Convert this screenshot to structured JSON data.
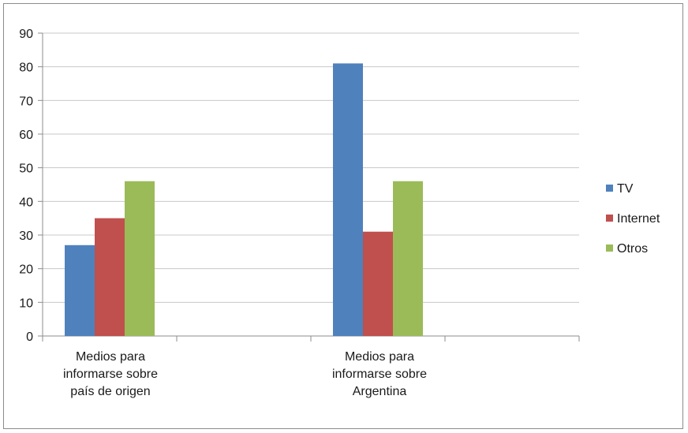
{
  "chart_data": {
    "type": "bar",
    "title": "",
    "xlabel": "",
    "ylabel": "",
    "ylim": [
      0,
      90
    ],
    "yticks": [
      0,
      10,
      20,
      30,
      40,
      50,
      60,
      70,
      80,
      90
    ],
    "grid": true,
    "legend_position": "right",
    "categories": [
      [
        "Medios para",
        "informarse sobre",
        "país de origen"
      ],
      [
        "Medios para",
        "informarse sobre",
        "Argentina"
      ]
    ],
    "series": [
      {
        "name": "TV",
        "color": "#4f81bd",
        "values": [
          27,
          81
        ]
      },
      {
        "name": "Internet",
        "color": "#c0504d",
        "values": [
          35,
          31
        ]
      },
      {
        "name": "Otros",
        "color": "#9bbb59",
        "values": [
          46,
          46
        ]
      }
    ]
  }
}
